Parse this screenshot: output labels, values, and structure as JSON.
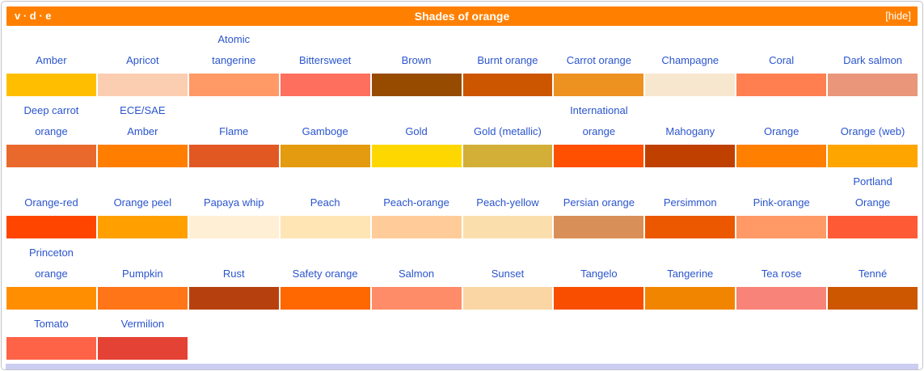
{
  "header": {
    "vde": "v · d · e",
    "title": "Shades of orange",
    "hide_label": "[hide]",
    "bg_color": "#FF8000",
    "text_color": "#FFFFFF"
  },
  "colors": {
    "link_blue": "#2A55CD",
    "bottom_bar": "#CBCDF2"
  },
  "rows": [
    {
      "cells": [
        {
          "label": "Amber",
          "color": "#FFBF00"
        },
        {
          "label": "Apricot",
          "color": "#FBCEB1"
        },
        {
          "label": "Atomic\ntangerine",
          "color": "#FF9966"
        },
        {
          "label": "Bittersweet",
          "color": "#FE6F5E"
        },
        {
          "label": "Brown",
          "color": "#964B00"
        },
        {
          "label": "Burnt orange",
          "color": "#CC5500"
        },
        {
          "label": "Carrot orange",
          "color": "#ED9121"
        },
        {
          "label": "Champagne",
          "color": "#F7E7CE"
        },
        {
          "label": "Coral",
          "color": "#FF7F50"
        },
        {
          "label": "Dark salmon",
          "color": "#E9967A"
        }
      ]
    },
    {
      "cells": [
        {
          "label": "Deep carrot\norange",
          "color": "#E9692C"
        },
        {
          "label": "ECE/SAE\nAmber",
          "color": "#FF7E00"
        },
        {
          "label": "Flame",
          "color": "#E25822"
        },
        {
          "label": "Gamboge",
          "color": "#E49B0F"
        },
        {
          "label": "Gold",
          "color": "#FFD700"
        },
        {
          "label": "Gold (metallic)",
          "color": "#D4AF37"
        },
        {
          "label": "International\norange",
          "color": "#FF4F00"
        },
        {
          "label": "Mahogany",
          "color": "#C04000"
        },
        {
          "label": "Orange",
          "color": "#FF7F00"
        },
        {
          "label": "Orange (web)",
          "color": "#FFA500"
        }
      ]
    },
    {
      "cells": [
        {
          "label": "Orange-red",
          "color": "#FF4500"
        },
        {
          "label": "Orange peel",
          "color": "#FFA000"
        },
        {
          "label": "Papaya whip",
          "color": "#FFEFD5"
        },
        {
          "label": "Peach",
          "color": "#FFE5B4"
        },
        {
          "label": "Peach-orange",
          "color": "#FFCC99"
        },
        {
          "label": "Peach-yellow",
          "color": "#FADFAD"
        },
        {
          "label": "Persian orange",
          "color": "#D99058"
        },
        {
          "label": "Persimmon",
          "color": "#EC5800"
        },
        {
          "label": "Pink-orange",
          "color": "#FF9966"
        },
        {
          "label": "Portland\nOrange",
          "color": "#FF5A36"
        }
      ]
    },
    {
      "cells": [
        {
          "label": "Princeton\norange",
          "color": "#FF8F00"
        },
        {
          "label": "Pumpkin",
          "color": "#FF7518"
        },
        {
          "label": "Rust",
          "color": "#B7410E"
        },
        {
          "label": "Safety orange",
          "color": "#FF6700"
        },
        {
          "label": "Salmon",
          "color": "#FF8C69"
        },
        {
          "label": "Sunset",
          "color": "#FAD6A5"
        },
        {
          "label": "Tangelo",
          "color": "#F94D00"
        },
        {
          "label": "Tangerine",
          "color": "#F28500"
        },
        {
          "label": "Tea rose",
          "color": "#F88379"
        },
        {
          "label": "Tenné",
          "color": "#CD5700"
        }
      ]
    },
    {
      "cells": [
        {
          "label": "Tomato",
          "color": "#FF6347"
        },
        {
          "label": "Vermilion",
          "color": "#E34234"
        }
      ]
    }
  ]
}
